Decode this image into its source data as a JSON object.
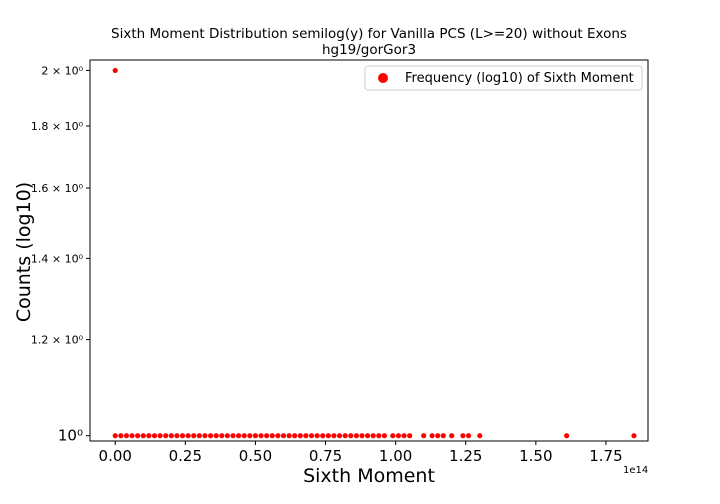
{
  "chart_data": {
    "type": "scatter",
    "title": "Sixth Moment Distribution semilog(y) for Vanilla PCS (L>=20) without Exons",
    "subtitle": "hg19/gorGor3",
    "xlabel": "Sixth Moment",
    "ylabel": "Counts (log10)",
    "x_offset_label": "1e14",
    "x_scale": 100000000000000,
    "xlim": [
      -0.09,
      1.9
    ],
    "ylim": [
      0.99,
      2.04
    ],
    "y_scale": "log",
    "grid": false,
    "legend_position": "top-right",
    "x_tick_labels": [
      "0.00",
      "0.25",
      "0.50",
      "0.75",
      "1.00",
      "1.25",
      "1.50",
      "1.75"
    ],
    "y_tick_labels": [
      "10⁰",
      "1.2 × 10⁰",
      "1.4 × 10⁰",
      "1.6 × 10⁰",
      "1.8 × 10⁰",
      "2 × 10⁰"
    ],
    "series": [
      {
        "name": "Frequency (log10) of Sixth Moment",
        "color": "#ff0000",
        "points": [
          {
            "x": 0.0,
            "y": 2
          },
          {
            "x": 0.0,
            "y": 1
          },
          {
            "x": 0.02,
            "y": 1
          },
          {
            "x": 0.04,
            "y": 1
          },
          {
            "x": 0.06,
            "y": 1
          },
          {
            "x": 0.08,
            "y": 1
          },
          {
            "x": 0.1,
            "y": 1
          },
          {
            "x": 0.12,
            "y": 1
          },
          {
            "x": 0.14,
            "y": 1
          },
          {
            "x": 0.16,
            "y": 1
          },
          {
            "x": 0.18,
            "y": 1
          },
          {
            "x": 0.2,
            "y": 1
          },
          {
            "x": 0.22,
            "y": 1
          },
          {
            "x": 0.24,
            "y": 1
          },
          {
            "x": 0.26,
            "y": 1
          },
          {
            "x": 0.28,
            "y": 1
          },
          {
            "x": 0.3,
            "y": 1
          },
          {
            "x": 0.32,
            "y": 1
          },
          {
            "x": 0.34,
            "y": 1
          },
          {
            "x": 0.36,
            "y": 1
          },
          {
            "x": 0.38,
            "y": 1
          },
          {
            "x": 0.4,
            "y": 1
          },
          {
            "x": 0.42,
            "y": 1
          },
          {
            "x": 0.44,
            "y": 1
          },
          {
            "x": 0.46,
            "y": 1
          },
          {
            "x": 0.48,
            "y": 1
          },
          {
            "x": 0.5,
            "y": 1
          },
          {
            "x": 0.52,
            "y": 1
          },
          {
            "x": 0.54,
            "y": 1
          },
          {
            "x": 0.56,
            "y": 1
          },
          {
            "x": 0.58,
            "y": 1
          },
          {
            "x": 0.6,
            "y": 1
          },
          {
            "x": 0.62,
            "y": 1
          },
          {
            "x": 0.64,
            "y": 1
          },
          {
            "x": 0.66,
            "y": 1
          },
          {
            "x": 0.68,
            "y": 1
          },
          {
            "x": 0.7,
            "y": 1
          },
          {
            "x": 0.72,
            "y": 1
          },
          {
            "x": 0.74,
            "y": 1
          },
          {
            "x": 0.76,
            "y": 1
          },
          {
            "x": 0.78,
            "y": 1
          },
          {
            "x": 0.8,
            "y": 1
          },
          {
            "x": 0.82,
            "y": 1
          },
          {
            "x": 0.84,
            "y": 1
          },
          {
            "x": 0.86,
            "y": 1
          },
          {
            "x": 0.88,
            "y": 1
          },
          {
            "x": 0.9,
            "y": 1
          },
          {
            "x": 0.92,
            "y": 1
          },
          {
            "x": 0.94,
            "y": 1
          },
          {
            "x": 0.96,
            "y": 1
          },
          {
            "x": 0.99,
            "y": 1
          },
          {
            "x": 1.01,
            "y": 1
          },
          {
            "x": 1.03,
            "y": 1
          },
          {
            "x": 1.05,
            "y": 1
          },
          {
            "x": 1.1,
            "y": 1
          },
          {
            "x": 1.13,
            "y": 1
          },
          {
            "x": 1.15,
            "y": 1
          },
          {
            "x": 1.17,
            "y": 1
          },
          {
            "x": 1.2,
            "y": 1
          },
          {
            "x": 1.24,
            "y": 1
          },
          {
            "x": 1.26,
            "y": 1
          },
          {
            "x": 1.3,
            "y": 1
          },
          {
            "x": 1.61,
            "y": 1
          },
          {
            "x": 1.85,
            "y": 1
          }
        ]
      }
    ]
  }
}
